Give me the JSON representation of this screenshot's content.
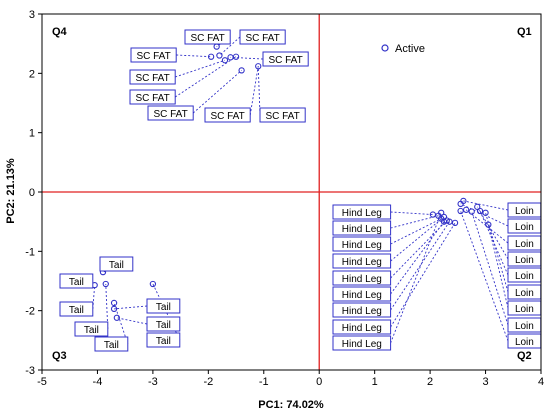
{
  "chart_data": {
    "type": "scatter",
    "xlabel": "PC1: 74.02%",
    "ylabel": "PC2: 21.13%",
    "xlim": [
      -5,
      4
    ],
    "ylim": [
      -3,
      3
    ],
    "x_ticks": [
      "-5",
      "-4",
      "-3",
      "-2",
      "-1",
      "0",
      "1",
      "2",
      "3",
      "4"
    ],
    "y_ticks": [
      "3",
      "2",
      "1",
      "0",
      "-1",
      "-2",
      "-3"
    ],
    "reference_lines": {
      "x": 0,
      "y": 0,
      "color": "#e02020"
    },
    "quadrant_labels": {
      "Q1": "Q1",
      "Q2": "Q2",
      "Q3": "Q3",
      "Q4": "Q4"
    },
    "legend": {
      "label": "Active",
      "position": "top-right"
    },
    "marker_color": "#3232c8",
    "series": [
      {
        "name": "Active",
        "points": [
          {
            "label": "SC FAT",
            "x": -1.85,
            "y": 2.45
          },
          {
            "label": "SC FAT",
            "x": -1.8,
            "y": 2.3
          },
          {
            "label": "SC FAT",
            "x": -1.95,
            "y": 2.28
          },
          {
            "label": "SC FAT",
            "x": -1.6,
            "y": 2.27
          },
          {
            "label": "SC FAT",
            "x": -1.7,
            "y": 2.22
          },
          {
            "label": "SC FAT",
            "x": -1.5,
            "y": 2.28
          },
          {
            "label": "SC FAT",
            "x": -1.4,
            "y": 2.05
          },
          {
            "label": "SC FAT",
            "x": -1.1,
            "y": 2.12
          },
          {
            "label": "Tail",
            "x": -3.9,
            "y": -1.35
          },
          {
            "label": "Tail",
            "x": -4.25,
            "y": -1.5
          },
          {
            "label": "Tail",
            "x": -4.05,
            "y": -1.57
          },
          {
            "label": "Tail",
            "x": -3.85,
            "y": -1.55
          },
          {
            "label": "Tail",
            "x": -3.7,
            "y": -1.87
          },
          {
            "label": "Tail",
            "x": -3.7,
            "y": -1.97
          },
          {
            "label": "Tail",
            "x": -3.65,
            "y": -2.12
          },
          {
            "label": "Tail",
            "x": -3.0,
            "y": -1.55
          },
          {
            "label": "Hind Leg",
            "x": 2.05,
            "y": -0.38
          },
          {
            "label": "Hind Leg",
            "x": 2.15,
            "y": -0.4
          },
          {
            "label": "Hind Leg",
            "x": 2.2,
            "y": -0.45
          },
          {
            "label": "Hind Leg",
            "x": 2.25,
            "y": -0.42
          },
          {
            "label": "Hind Leg",
            "x": 2.3,
            "y": -0.48
          },
          {
            "label": "Hind Leg",
            "x": 2.25,
            "y": -0.5
          },
          {
            "label": "Hind Leg",
            "x": 2.35,
            "y": -0.5
          },
          {
            "label": "Hind Leg",
            "x": 2.45,
            "y": -0.52
          },
          {
            "label": "Hind Leg",
            "x": 2.2,
            "y": -0.35
          },
          {
            "label": "Loin",
            "x": 2.6,
            "y": -0.15
          },
          {
            "label": "Loin",
            "x": 2.55,
            "y": -0.2
          },
          {
            "label": "Loin",
            "x": 2.65,
            "y": -0.3
          },
          {
            "label": "Loin",
            "x": 2.85,
            "y": -0.25
          },
          {
            "label": "Loin",
            "x": 2.9,
            "y": -0.32
          },
          {
            "label": "Loin",
            "x": 3.0,
            "y": -0.35
          },
          {
            "label": "Loin",
            "x": 3.05,
            "y": -0.55
          },
          {
            "label": "Loin",
            "x": 2.75,
            "y": -0.33
          },
          {
            "label": "Loin",
            "x": 2.55,
            "y": -0.32
          }
        ]
      }
    ]
  }
}
